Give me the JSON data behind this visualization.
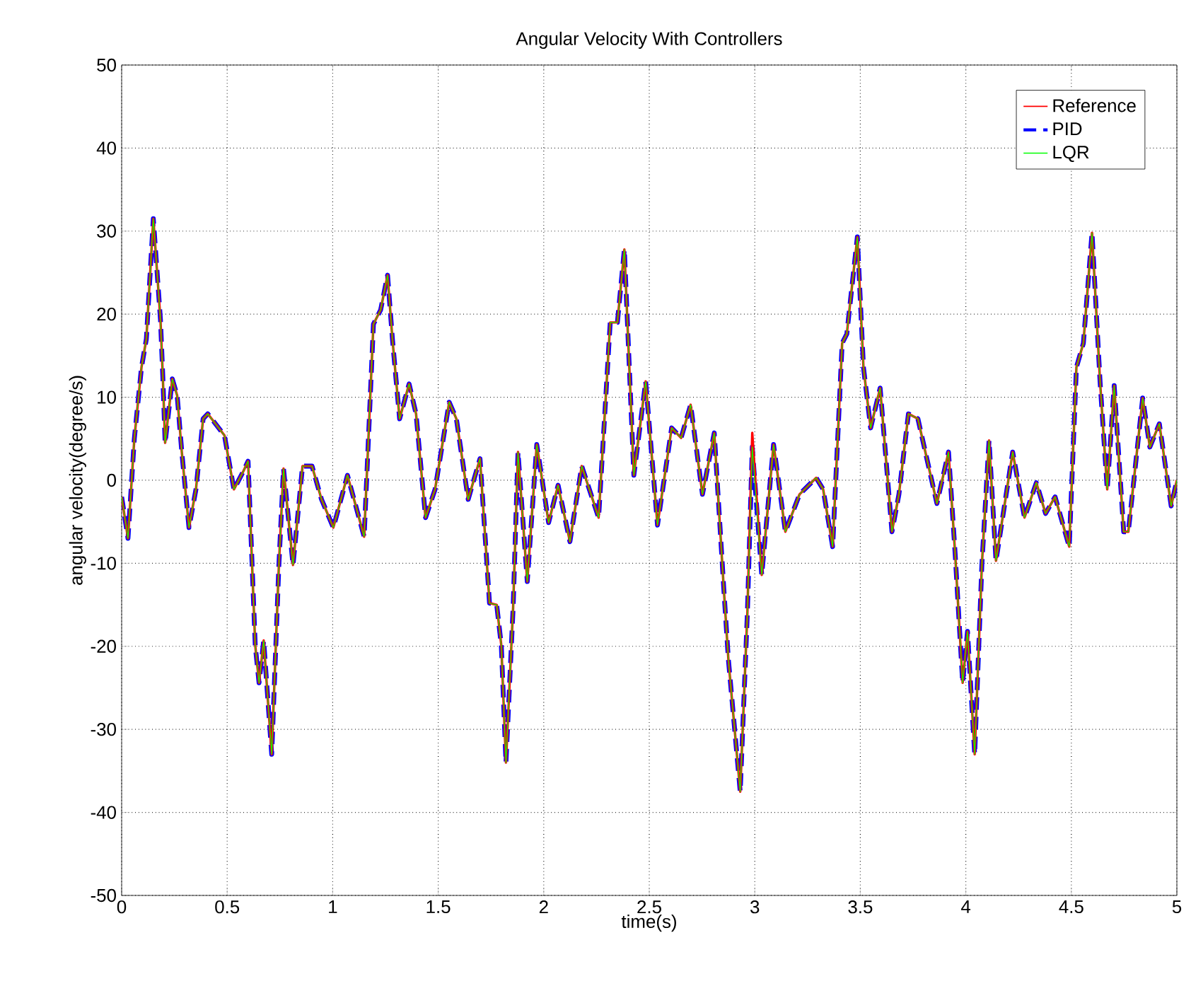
{
  "chart_data": {
    "type": "line",
    "title": "Angular Velocity With Controllers",
    "xlabel": "time(s)",
    "ylabel": "angular velocity(degree/s)",
    "x": [
      0,
      0.03,
      0.06,
      0.094,
      0.117,
      0.15,
      0.184,
      0.195,
      0.206,
      0.24,
      0.263,
      0.285,
      0.319,
      0.352,
      0.386,
      0.408,
      0.487,
      0.532,
      0.577,
      0.599,
      0.633,
      0.651,
      0.673,
      0.711,
      0.745,
      0.767,
      0.812,
      0.857,
      0.902,
      0.947,
      1.003,
      1.07,
      1.149,
      1.193,
      1.227,
      1.26,
      1.283,
      1.317,
      1.362,
      1.395,
      1.44,
      1.485,
      1.552,
      1.586,
      1.642,
      1.698,
      1.743,
      1.777,
      1.799,
      1.821,
      1.855,
      1.878,
      1.922,
      1.967,
      2.023,
      2.068,
      2.124,
      2.18,
      2.26,
      2.315,
      2.349,
      2.382,
      2.427,
      2.483,
      2.539,
      2.606,
      2.651,
      2.696,
      2.752,
      2.808,
      2.853,
      2.875,
      2.931,
      2.965,
      2.988,
      3.033,
      3.089,
      3.145,
      3.212,
      3.291,
      3.324,
      3.369,
      3.414,
      3.436,
      3.486,
      3.515,
      3.549,
      3.594,
      3.65,
      3.683,
      3.728,
      3.773,
      3.863,
      3.918,
      3.95,
      3.985,
      4.008,
      4.042,
      4.076,
      4.11,
      4.143,
      4.222,
      4.278,
      4.334,
      4.378,
      4.423,
      4.49,
      4.524,
      4.557,
      4.598,
      4.636,
      4.67,
      4.703,
      4.748,
      4.77,
      4.838,
      4.872,
      4.917,
      4.973,
      5
    ],
    "series": [
      {
        "name": "Reference",
        "color": "#ff0000",
        "line_style": "solid",
        "values": [
          -2,
          -7,
          5,
          13.6,
          17,
          31.5,
          19.3,
          12.5,
          4.5,
          12.2,
          10.2,
          3.4,
          -5.7,
          -1.1,
          7.4,
          8,
          5.4,
          -1.1,
          1.1,
          2.3,
          -19.9,
          -24.4,
          -19.3,
          -33,
          -10.2,
          1.4,
          -10.2,
          1.7,
          1.7,
          -2.3,
          -5.7,
          0.6,
          -6.8,
          18.8,
          20.5,
          24.7,
          17,
          7.4,
          11.6,
          8,
          -4.5,
          -1.1,
          9.4,
          7.4,
          -2.3,
          2.6,
          -14.8,
          -15,
          -19.9,
          -34,
          -15.3,
          3.4,
          -12.2,
          4.3,
          -5.1,
          -0.6,
          -7.4,
          1.7,
          -4.5,
          19,
          19,
          27.8,
          0.6,
          11.9,
          -5.4,
          6.3,
          5.1,
          9.1,
          -1.7,
          5.7,
          -13,
          -21.6,
          -37.5,
          -15.9,
          5.7,
          -11.4,
          4.3,
          -6.2,
          -1.7,
          0.3,
          -1.1,
          -8,
          16.5,
          17.6,
          29.3,
          13.6,
          6.3,
          11.1,
          -6.2,
          -1.7,
          8,
          7.4,
          -2.8,
          3.4,
          -9.1,
          -24.4,
          -18.2,
          -33,
          -10.2,
          4.8,
          -9.7,
          3.4,
          -4.5,
          -0.3,
          -4,
          -2,
          -8,
          13.6,
          16.5,
          29.8,
          11.9,
          -1.1,
          11.4,
          -6.2,
          -6.2,
          9.9,
          4,
          6.8,
          -3.1,
          0
        ]
      },
      {
        "name": "PID",
        "color": "#0000ff",
        "line_style": "dashed",
        "values": [
          -2,
          -7,
          5,
          13.6,
          17,
          31.5,
          19.3,
          12.5,
          4.5,
          12.2,
          10.2,
          3.4,
          -5.7,
          -1.1,
          7.4,
          8,
          5.4,
          -1.1,
          1.1,
          2.3,
          -19.9,
          -24.4,
          -19.3,
          -33,
          -10.2,
          1.4,
          -10.2,
          1.7,
          1.7,
          -2.3,
          -5.7,
          0.6,
          -6.8,
          18.8,
          20.5,
          24.7,
          17,
          7.4,
          11.6,
          8,
          -4.5,
          -1.1,
          9.4,
          7.4,
          -2.3,
          2.6,
          -14.8,
          -15,
          -19.9,
          -34,
          -15.3,
          3.4,
          -12.2,
          4.3,
          -5.1,
          -0.6,
          -7.4,
          1.7,
          -4.5,
          19,
          19,
          27.8,
          0.6,
          11.9,
          -5.4,
          6.3,
          5.1,
          9.1,
          -1.7,
          5.7,
          -13,
          -21.6,
          -37.5,
          -15.9,
          4,
          -11.4,
          4.3,
          -6.2,
          -1.7,
          0.3,
          -1.1,
          -8,
          16.5,
          17.6,
          29.3,
          13.6,
          6.3,
          11.1,
          -6.2,
          -1.7,
          8,
          7.4,
          -2.8,
          3.4,
          -9.1,
          -24.4,
          -18.2,
          -33,
          -10.2,
          4.8,
          -9.7,
          3.4,
          -4.5,
          -0.3,
          -4,
          -2,
          -8,
          13.6,
          16.5,
          29.8,
          11.9,
          -1.1,
          11.4,
          -6.2,
          -6.2,
          9.9,
          4,
          6.8,
          -3.1,
          0
        ]
      },
      {
        "name": "LQR",
        "color": "#00ff00",
        "line_style": "solid",
        "values": [
          -2,
          -7,
          5,
          13.6,
          17,
          31.5,
          19.3,
          12.5,
          4.5,
          12.2,
          10.2,
          3.4,
          -5.7,
          -1.1,
          7.4,
          8,
          5.4,
          -1.1,
          1.1,
          2.3,
          -19.9,
          -24.4,
          -19.3,
          -33,
          -10.2,
          1.4,
          -10.2,
          1.7,
          1.7,
          -2.3,
          -5.7,
          0.6,
          -6.8,
          18.8,
          20.5,
          24.7,
          17,
          7.4,
          11.6,
          8,
          -4.5,
          -1.1,
          9.4,
          7.4,
          -2.3,
          2.6,
          -14.8,
          -15,
          -19.9,
          -34,
          -15.3,
          3.4,
          -12.2,
          4.3,
          -5.1,
          -0.6,
          -7.4,
          1.7,
          -4.5,
          19,
          19,
          27.8,
          0.6,
          11.9,
          -5.4,
          6.3,
          5.1,
          9.1,
          -1.7,
          5.7,
          -13,
          -21.6,
          -37.5,
          -15.9,
          4,
          -11.4,
          4.3,
          -6.2,
          -1.7,
          0.3,
          -1.1,
          -8,
          16.5,
          17.6,
          29.3,
          13.6,
          6.3,
          11.1,
          -6.2,
          -1.7,
          8,
          7.4,
          -2.8,
          3.4,
          -9.1,
          -24.4,
          -18.2,
          -33,
          -10.2,
          4.8,
          -9.7,
          3.4,
          -4.5,
          -0.3,
          -4,
          -2,
          -8,
          13.6,
          16.5,
          29.8,
          11.9,
          -1.1,
          11.4,
          -6.2,
          -6.2,
          9.9,
          4,
          6.8,
          -3.1,
          0
        ]
      }
    ],
    "xlim": [
      0,
      5
    ],
    "xticks": [
      0,
      0.5,
      1,
      1.5,
      2,
      2.5,
      3,
      3.5,
      4,
      4.5,
      5
    ],
    "ylim": [
      -50,
      50
    ],
    "yticks": [
      -50,
      -40,
      -30,
      -20,
      -10,
      0,
      10,
      20,
      30,
      40,
      50
    ],
    "grid": true,
    "legend": "top right",
    "marker": "none"
  }
}
